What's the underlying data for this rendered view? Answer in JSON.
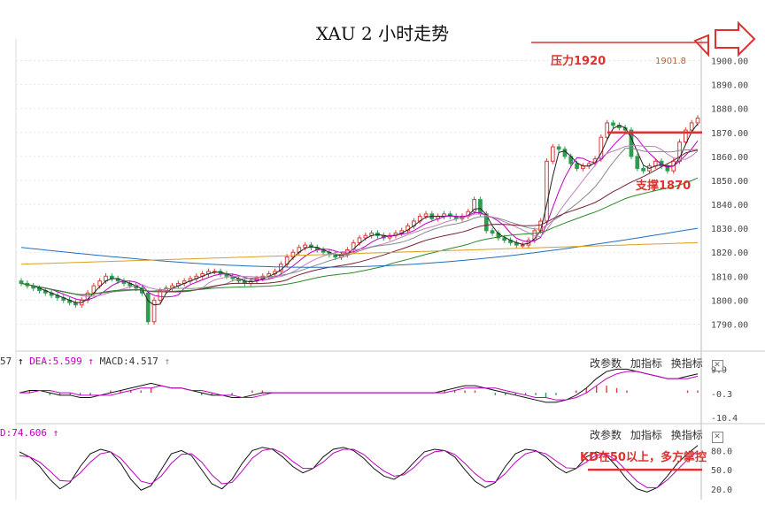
{
  "title": "XAU 2 小时走势",
  "annotations": {
    "resistance": "压力1920",
    "resistance_marker": "1901.8",
    "support": "支撑1870",
    "kd_note": "KD在50以上，多方掌控"
  },
  "indicator_labels": {
    "macd_prefix": "57",
    "dea": "DEA:5.599",
    "macd": "MACD:4.517",
    "kd_prefix": "D:74.606"
  },
  "toolbar": {
    "change_params": "改参数",
    "add_indicator": "加指标",
    "switch_indicator": "换指标",
    "close": "✕"
  },
  "colors": {
    "up": "#d83c3c",
    "down": "#2e9c4e",
    "arrow": "#e03030"
  },
  "chart_data": [
    {
      "type": "candlestick",
      "y_ticks": [
        "1900.00",
        "1890.00",
        "1880.00",
        "1870.00",
        "1860.00",
        "1850.00",
        "1840.00",
        "1830.00",
        "1820.00",
        "1810.00",
        "1800.00",
        "1790.00"
      ],
      "ylim": [
        1785,
        1905
      ],
      "closes": [
        1807,
        1806,
        1805,
        1804,
        1803,
        1802,
        1801,
        1800,
        1799,
        1798,
        1800,
        1803,
        1806,
        1808,
        1810,
        1809,
        1808,
        1807,
        1806,
        1805,
        1803,
        1791,
        1800,
        1804,
        1805,
        1806,
        1807,
        1808,
        1809,
        1810,
        1811,
        1812,
        1812,
        1811,
        1810,
        1809,
        1808,
        1807,
        1808,
        1809,
        1810,
        1811,
        1812,
        1815,
        1818,
        1820,
        1822,
        1823,
        1822,
        1821,
        1820,
        1819,
        1818,
        1819,
        1821,
        1824,
        1826,
        1827,
        1828,
        1827,
        1826,
        1827,
        1828,
        1829,
        1831,
        1833,
        1835,
        1836,
        1834,
        1835,
        1836,
        1835,
        1834,
        1835,
        1837,
        1842,
        1836,
        1829,
        1828,
        1826,
        1825,
        1824,
        1823,
        1823,
        1825,
        1829,
        1833,
        1858,
        1864,
        1863,
        1860,
        1857,
        1855,
        1856,
        1857,
        1859,
        1868,
        1874,
        1873,
        1872,
        1871,
        1860,
        1855,
        1854,
        1856,
        1858,
        1856,
        1854,
        1858,
        1866,
        1871,
        1874,
        1876
      ],
      "series": [
        {
          "name": "MA5",
          "color": "#222222"
        },
        {
          "name": "MA10",
          "color": "#c000c0"
        },
        {
          "name": "MA20",
          "color": "#c080c0"
        },
        {
          "name": "MA30",
          "color": "#888888"
        },
        {
          "name": "MA60",
          "color": "#7a2030"
        },
        {
          "name": "MA120",
          "color": "#2a8a2a"
        },
        {
          "name": "MA250",
          "color": "#1f6fbf"
        },
        {
          "name": "MA500",
          "color": "#d9a020"
        }
      ],
      "horizontal_lines": [
        {
          "label": "压力1920",
          "y": 1905
        },
        {
          "label": "支撑1870",
          "y": 1870
        }
      ]
    },
    {
      "type": "macd",
      "y_ticks": [
        "9.9",
        "-0.3",
        "-10.4"
      ],
      "ylim": [
        -10.4,
        12
      ],
      "dif": [
        0,
        1,
        1,
        0,
        -1,
        -1,
        -2,
        -2,
        -1,
        0,
        1,
        2,
        3,
        4,
        3,
        2,
        2,
        1,
        0,
        -1,
        -1,
        -2,
        -2,
        -1,
        0,
        0,
        0,
        0,
        0,
        0,
        0,
        0,
        0,
        0,
        0,
        0,
        0,
        0,
        0,
        0,
        0,
        0,
        1,
        2,
        3,
        3,
        2,
        1,
        0,
        -1,
        -2,
        -3,
        -4,
        -4,
        -3,
        -1,
        2,
        6,
        9,
        10,
        10,
        9,
        8,
        7,
        6,
        6,
        7,
        8
      ],
      "dea": [
        0,
        0,
        1,
        1,
        0,
        0,
        -1,
        -1,
        -1,
        -1,
        0,
        1,
        2,
        2,
        3,
        2,
        2,
        1,
        1,
        0,
        -1,
        -1,
        -2,
        -2,
        -1,
        0,
        0,
        0,
        0,
        0,
        0,
        0,
        0,
        0,
        0,
        0,
        0,
        0,
        0,
        0,
        0,
        0,
        0,
        1,
        2,
        2,
        2,
        2,
        1,
        0,
        -1,
        -2,
        -2,
        -3,
        -3,
        -2,
        0,
        3,
        6,
        8,
        9,
        9,
        8,
        7,
        6,
        6,
        6,
        7
      ],
      "hist": [
        0,
        1,
        0,
        -1,
        -1,
        -1,
        -1,
        -1,
        0,
        1,
        1,
        1,
        1,
        2,
        0,
        0,
        0,
        0,
        -1,
        -1,
        0,
        -1,
        0,
        1,
        1,
        0,
        0,
        0,
        0,
        0,
        0,
        0,
        0,
        0,
        0,
        0,
        0,
        0,
        0,
        0,
        0,
        0,
        1,
        1,
        1,
        1,
        0,
        -1,
        -1,
        -1,
        -1,
        -1,
        -2,
        -1,
        0,
        1,
        2,
        3,
        3,
        2,
        1,
        0,
        0,
        0,
        0,
        0,
        1,
        1
      ]
    },
    {
      "type": "kd",
      "y_ticks": [
        "80.0",
        "50.0",
        "20.0"
      ],
      "ylim": [
        10,
        100
      ],
      "k": [
        78,
        70,
        55,
        35,
        20,
        30,
        55,
        75,
        82,
        78,
        60,
        35,
        18,
        25,
        50,
        75,
        80,
        72,
        50,
        28,
        20,
        35,
        60,
        80,
        85,
        82,
        70,
        55,
        45,
        52,
        70,
        82,
        85,
        80,
        68,
        52,
        40,
        35,
        45,
        62,
        78,
        82,
        80,
        70,
        50,
        32,
        22,
        30,
        55,
        75,
        82,
        80,
        70,
        55,
        45,
        52,
        70,
        78,
        72,
        55,
        35,
        20,
        15,
        22,
        40,
        60,
        75,
        88
      ],
      "d": [
        72,
        70,
        62,
        48,
        33,
        32,
        45,
        62,
        75,
        78,
        68,
        50,
        32,
        28,
        40,
        60,
        74,
        75,
        62,
        42,
        28,
        30,
        48,
        68,
        80,
        83,
        76,
        63,
        52,
        52,
        62,
        76,
        82,
        82,
        74,
        60,
        48,
        40,
        42,
        54,
        70,
        78,
        80,
        74,
        60,
        44,
        32,
        31,
        44,
        62,
        75,
        79,
        75,
        64,
        53,
        52,
        62,
        73,
        74,
        64,
        48,
        32,
        22,
        22,
        34,
        50,
        66,
        80
      ]
    }
  ]
}
